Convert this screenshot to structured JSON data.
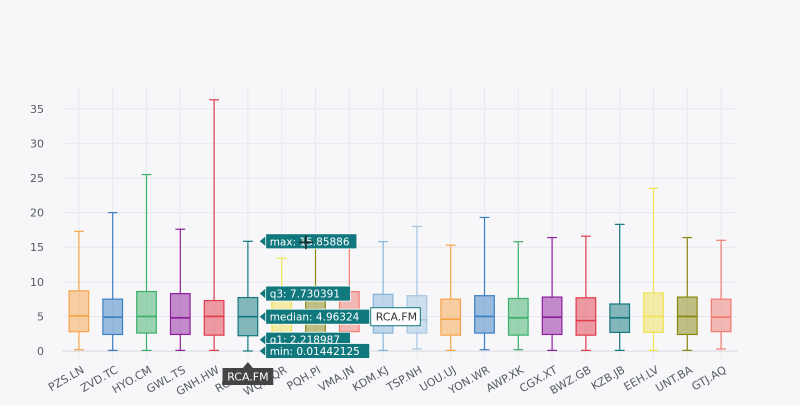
{
  "modebar": {
    "buttons": [
      {
        "name": "camera-icon",
        "glyph": "📷"
      },
      {
        "name": "zoom-icon",
        "glyph": "🔍"
      },
      {
        "name": "pan-icon",
        "glyph": "✥"
      },
      {
        "name": "zoom-in-icon",
        "glyph": "⊞"
      },
      {
        "name": "zoom-out-icon",
        "glyph": "⊟"
      },
      {
        "name": "autoscale-icon",
        "glyph": "⤢"
      },
      {
        "name": "home-icon",
        "glyph": "⌂"
      },
      {
        "name": "spike-lines-icon",
        "glyph": "⊤"
      },
      {
        "name": "hover-closest-icon",
        "glyph": "◀"
      },
      {
        "name": "hover-compare-icon",
        "glyph": "☰"
      },
      {
        "name": "plotly-logo-icon",
        "glyph": "▮"
      }
    ]
  },
  "chart_data": {
    "type": "box",
    "title": "",
    "xlabel": "",
    "ylabel": "",
    "ylim": [
      -1,
      38
    ],
    "yticks": [
      0,
      5,
      10,
      15,
      20,
      25,
      30,
      35
    ],
    "grid": true,
    "legend": "none",
    "series": [
      {
        "name": "PZS.LN",
        "color": "#f7a449",
        "min": 0.2,
        "q1": 2.8,
        "median": 5.1,
        "q3": 8.7,
        "max": 17.3
      },
      {
        "name": "ZVD.TC",
        "color": "#3a7fc4",
        "min": 0.1,
        "q1": 2.4,
        "median": 4.9,
        "q3": 7.5,
        "max": 20.0
      },
      {
        "name": "HYO.CM",
        "color": "#3cb06b",
        "min": 0.1,
        "q1": 2.6,
        "median": 5.0,
        "q3": 8.6,
        "max": 25.5
      },
      {
        "name": "GWL.TS",
        "color": "#8e1e9c",
        "min": 0.1,
        "q1": 2.4,
        "median": 4.8,
        "q3": 8.3,
        "max": 17.6
      },
      {
        "name": "GNH.HW",
        "color": "#e23b4c",
        "min": 0.1,
        "q1": 2.3,
        "median": 5.0,
        "q3": 7.3,
        "max": 36.3
      },
      {
        "name": "RCA.FM",
        "color": "#11787e",
        "min": 0.01442125,
        "q1": 2.218987,
        "median": 4.96324,
        "q3": 7.730391,
        "max": 15.85886
      },
      {
        "name": "WQD.QR",
        "color": "#f0e254",
        "min": 0.1,
        "q1": 2.4,
        "median": 4.9,
        "q3": 7.5,
        "max": 13.4
      },
      {
        "name": "PQH.PI",
        "color": "#88880e",
        "min": 0.1,
        "q1": 2.6,
        "median": 5.0,
        "q3": 7.8,
        "max": 15.0
      },
      {
        "name": "VMA.JN",
        "color": "#f27a70",
        "min": 0.2,
        "q1": 2.8,
        "median": 5.0,
        "q3": 8.6,
        "max": 16.4
      },
      {
        "name": "KDM.KJ",
        "color": "#86b4dc",
        "min": 0.1,
        "q1": 2.6,
        "median": 5.0,
        "q3": 8.2,
        "max": 15.8
      },
      {
        "name": "TSP.NH",
        "color": "#a4c6e4",
        "min": 0.3,
        "q1": 2.6,
        "median": 4.5,
        "q3": 8.0,
        "max": 18.0
      },
      {
        "name": "UOU.UJ",
        "color": "#f7a449",
        "min": 0.1,
        "q1": 2.3,
        "median": 4.6,
        "q3": 7.5,
        "max": 15.3
      },
      {
        "name": "YON.WR",
        "color": "#3a7fc4",
        "min": 0.2,
        "q1": 2.6,
        "median": 5.0,
        "q3": 8.0,
        "max": 19.3
      },
      {
        "name": "AWP.XK",
        "color": "#3cb06b",
        "min": 0.2,
        "q1": 2.3,
        "median": 4.8,
        "q3": 7.6,
        "max": 15.8
      },
      {
        "name": "CGX.XT",
        "color": "#8e1e9c",
        "min": 0.1,
        "q1": 2.4,
        "median": 4.9,
        "q3": 7.8,
        "max": 16.4
      },
      {
        "name": "BWZ.GB",
        "color": "#e23b4c",
        "min": 0.1,
        "q1": 2.3,
        "median": 4.4,
        "q3": 7.7,
        "max": 16.6
      },
      {
        "name": "KZB.JB",
        "color": "#11787e",
        "min": 0.1,
        "q1": 2.7,
        "median": 4.8,
        "q3": 6.8,
        "max": 18.3
      },
      {
        "name": "EEH.LV",
        "color": "#f0e254",
        "min": 0.1,
        "q1": 2.7,
        "median": 5.0,
        "q3": 8.4,
        "max": 23.5
      },
      {
        "name": "UNT.BA",
        "color": "#88880e",
        "min": 0.1,
        "q1": 2.4,
        "median": 5.0,
        "q3": 7.8,
        "max": 16.4
      },
      {
        "name": "GTJ.AQ",
        "color": "#f27a70",
        "min": 0.3,
        "q1": 2.8,
        "median": 4.9,
        "q3": 7.5,
        "max": 16.0
      }
    ],
    "hover": {
      "series": "RCA.FM",
      "labels": [
        {
          "key": "max",
          "text": "max: 15.85886"
        },
        {
          "key": "q3",
          "text": "q3: 7.730391"
        },
        {
          "key": "median",
          "text": "median: 4.96324"
        },
        {
          "key": "q1",
          "text": "q1: 2.218987"
        },
        {
          "key": "min",
          "text": "min: 0.01442125"
        }
      ],
      "name_label": "RCA.FM",
      "axis_label": "RCA.FM"
    }
  }
}
